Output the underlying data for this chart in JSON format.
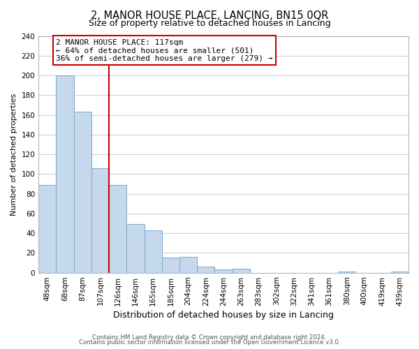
{
  "title": "2, MANOR HOUSE PLACE, LANCING, BN15 0QR",
  "subtitle": "Size of property relative to detached houses in Lancing",
  "xlabel": "Distribution of detached houses by size in Lancing",
  "ylabel": "Number of detached properties",
  "bar_labels": [
    "48sqm",
    "68sqm",
    "87sqm",
    "107sqm",
    "126sqm",
    "146sqm",
    "165sqm",
    "185sqm",
    "204sqm",
    "224sqm",
    "244sqm",
    "263sqm",
    "283sqm",
    "302sqm",
    "322sqm",
    "341sqm",
    "361sqm",
    "380sqm",
    "400sqm",
    "419sqm",
    "439sqm"
  ],
  "bar_values": [
    89,
    200,
    163,
    106,
    89,
    49,
    43,
    15,
    16,
    6,
    3,
    4,
    0,
    0,
    0,
    0,
    0,
    1,
    0,
    0,
    1
  ],
  "bar_color": "#c5d8ec",
  "bar_edge_color": "#7aaac8",
  "vertical_line_x": 3.5,
  "vertical_line_color": "#cc0000",
  "annotation_line1": "2 MANOR HOUSE PLACE: 117sqm",
  "annotation_line2": "← 64% of detached houses are smaller (501)",
  "annotation_line3": "36% of semi-detached houses are larger (279) →",
  "annotation_box_facecolor": "#ffffff",
  "annotation_box_edgecolor": "#cc0000",
  "ylim": [
    0,
    240
  ],
  "yticks": [
    0,
    20,
    40,
    60,
    80,
    100,
    120,
    140,
    160,
    180,
    200,
    220,
    240
  ],
  "footer_line1": "Contains HM Land Registry data © Crown copyright and database right 2024.",
  "footer_line2": "Contains public sector information licensed under the Open Government Licence v3.0.",
  "background_color": "#ffffff",
  "grid_color": "#c8d4e4",
  "title_fontsize": 10.5,
  "subtitle_fontsize": 9,
  "ylabel_fontsize": 8,
  "xlabel_fontsize": 9,
  "annotation_fontsize": 8,
  "tick_fontsize": 7.5
}
